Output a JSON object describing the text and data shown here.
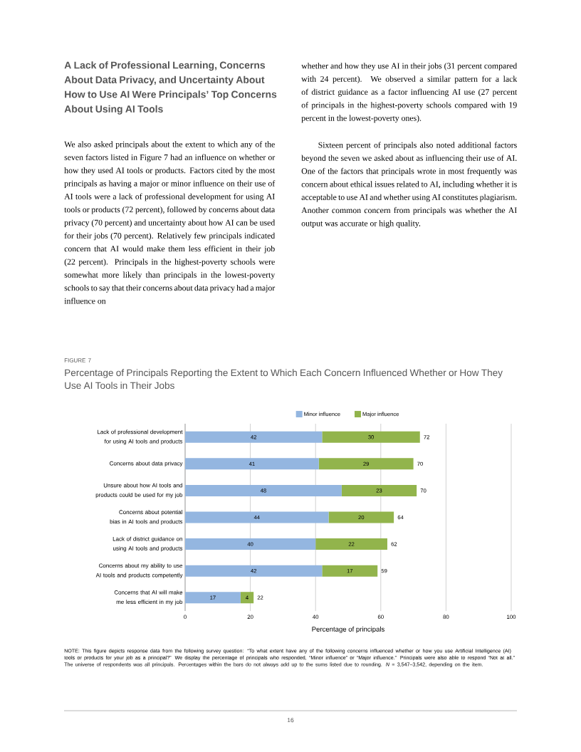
{
  "chart_data": {
    "type": "bar",
    "orientation": "horizontal",
    "stacked": true,
    "title": "Percentage of Principals Reporting the Extent to Which Each Concern Influenced Whether or How They Use AI Tools in Their Jobs",
    "xlabel": "Percentage of principals",
    "categories": [
      "Lack of professional development for using AI tools and products",
      "Concerns about data privacy",
      "Unsure about how AI tools and products could be used for my job",
      "Concerns about potential bias in AI tools and products",
      "Lack of district guidance on using AI tools and products",
      "Concerns about my ability to use AI tools and products competently",
      "Concerns that AI will make me less efficient in my job"
    ],
    "series": [
      {
        "name": "Minor influence",
        "color": "#94b6e0",
        "values": [
          42,
          41,
          48,
          44,
          40,
          42,
          17
        ],
        "value_labels": [
          "42",
          "41",
          "48",
          "44",
          "40",
          "42",
          "17"
        ]
      },
      {
        "name": "Major influence",
        "color": "#92b44c",
        "values": [
          30,
          29,
          23,
          20,
          22,
          17,
          4
        ],
        "value_labels": [
          "30",
          "29",
          "23",
          "20",
          "22",
          "17",
          "4"
        ]
      }
    ],
    "totals": [
      "72",
      "70",
      "70",
      "64",
      "62",
      "59",
      "22"
    ],
    "xlim": [
      0,
      100
    ],
    "xticks": [
      0,
      20,
      40,
      60,
      80,
      100
    ],
    "grid": "x",
    "legend": "top",
    "annotations": [
      "A Lack of Professional Learning, Concerns About Data Privacy, and Uncertainty About How to Use AI Were Principals’ Top Concerns About Using AI Tools",
      "We also asked principals about the extent to which any of the seven factors listed in Figure 7 had an influence on whether or how they used AI tools or products. Factors cited by the most principals as having a major or minor influence on their use of AI tools were a lack of professional development for using AI tools or products (72 percent), followed by concerns about data privacy (70 percent) and uncertainty about how AI can be used for their jobs (70 percent). Relatively few principals indicated concern that AI would make them less efficient in their job (22 percent). Principals in the highest-poverty schools were somewhat more likely than principals in the lowest-poverty schools to say that their concerns about data privacy had a major influence on",
      "whether and how they use AI in their jobs (31 percent compared with 24 percent). We observed a similar pattern for a lack of district guidance as a factor influencing AI use (27 percent of principals in the highest-poverty schools compared with 19 percent in the lowest-poverty ones).",
      "Sixteen percent of principals also noted additional factors beyond the seven we asked about as influencing their use of AI. One of the factors that principals wrote in most frequently was concern about ethical issues related to AI, including whether it is acceptable to use AI and whether using AI constitutes plagiarism. Another common concern from principals was whether the AI output was accurate or high quality.",
      "FIGURE 7",
      "NOTE: This figure depicts response data from the following survey question: “To what extent have any of the following concerns influenced whether or how you use Artificial Intelligence (AI) tools or products for your job as a principal?” We display the percentage of principals who responded, “Minor influence” or “Major influence.” Principals were also able to respond “Not at all.” The universe of respondents was all principals. Percentages within the bars do not always add up to the sums listed due to rounding. *N* = 3,547–3,542, depending on the item.",
      "16"
    ]
  }
}
